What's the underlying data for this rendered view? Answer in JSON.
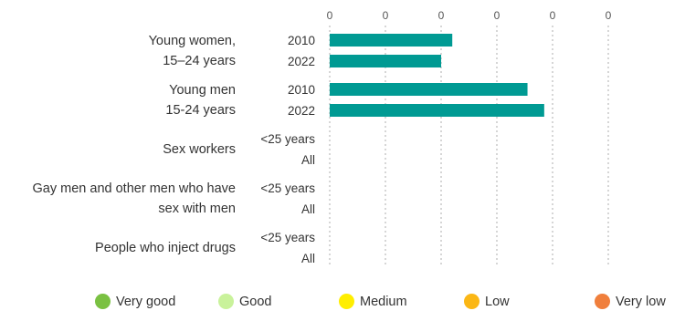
{
  "chart_data": {
    "type": "bar",
    "orientation": "horizontal",
    "x_tick_labels": [
      "0",
      "0",
      "0",
      "0",
      "0",
      "0"
    ],
    "xlim": [
      0,
      5
    ],
    "grid": true,
    "groups": [
      {
        "label_lines": [
          "Young women,",
          "15–24 years"
        ],
        "bars": [
          {
            "label": "2010",
            "value": 2.2
          },
          {
            "label": "2022",
            "value": 2.0
          }
        ]
      },
      {
        "label_lines": [
          "Young men",
          "15-24 years"
        ],
        "bars": [
          {
            "label": "2010",
            "value": 3.55
          },
          {
            "label": "2022",
            "value": 3.85
          }
        ]
      },
      {
        "label_lines": [
          "Sex workers"
        ],
        "bars": [
          {
            "label": "<25 years",
            "value": 0
          },
          {
            "label": "All",
            "value": 0
          }
        ]
      },
      {
        "label_lines": [
          "Gay men and other men who have",
          "sex with men"
        ],
        "bars": [
          {
            "label": "<25 years",
            "value": 0
          },
          {
            "label": "All",
            "value": 0
          }
        ]
      },
      {
        "label_lines": [
          "People who inject drugs"
        ],
        "bars": [
          {
            "label": "<25 years",
            "value": 0
          },
          {
            "label": "All",
            "value": 0
          }
        ]
      }
    ],
    "bar_color": "#009a93"
  },
  "legend": [
    {
      "label": "Very good",
      "color": "#7ac142"
    },
    {
      "label": "Good",
      "color": "#c9f29b"
    },
    {
      "label": "Medium",
      "color": "#ffee00"
    },
    {
      "label": "Low",
      "color": "#fbb715"
    },
    {
      "label": "Very low",
      "color": "#f07f3c"
    }
  ]
}
